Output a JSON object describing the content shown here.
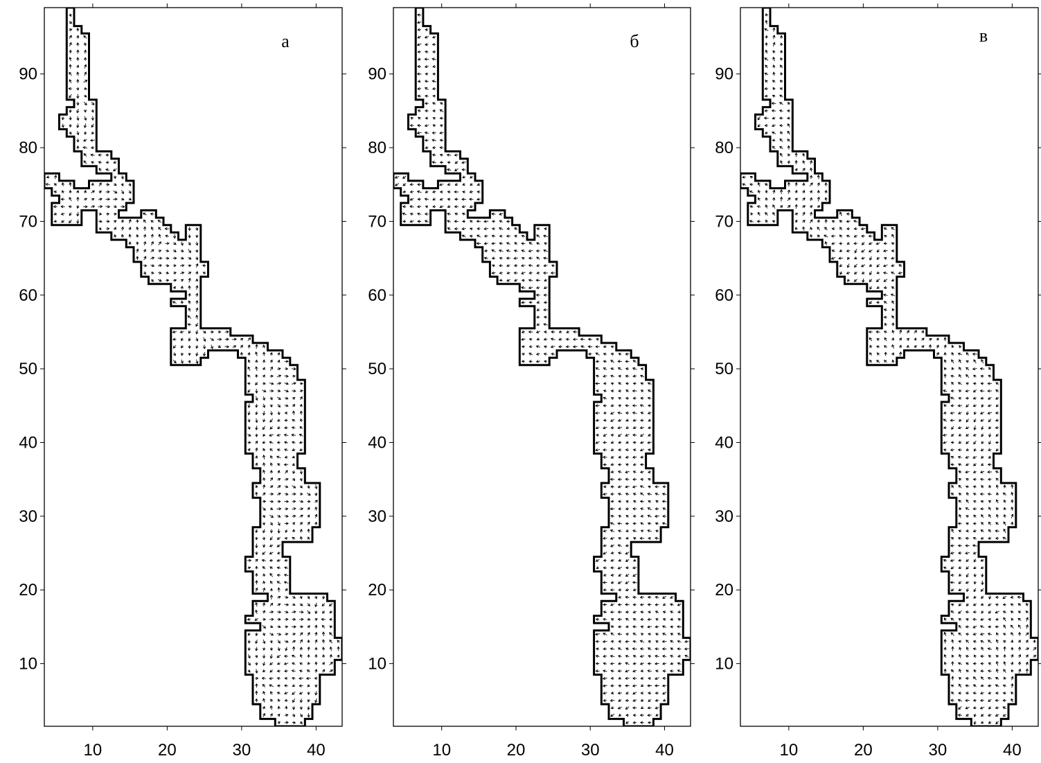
{
  "chart_data": [
    {
      "type": "quiver",
      "panel_label": "а",
      "xlim": [
        3.5,
        43.5
      ],
      "ylim": [
        1.5,
        99
      ],
      "xticks": [
        10,
        20,
        30,
        40
      ],
      "yticks": [
        10,
        20,
        30,
        40,
        50,
        60,
        70,
        80,
        90
      ],
      "xticklabels": [
        "10",
        "20",
        "30",
        "40"
      ],
      "yticklabels": [
        "10",
        "20",
        "30",
        "40",
        "50",
        "60",
        "70",
        "80",
        "90"
      ],
      "grid": false,
      "vector_field": "circulation"
    },
    {
      "type": "quiver",
      "panel_label": "б",
      "xlim": [
        3.5,
        43.5
      ],
      "ylim": [
        1.5,
        99
      ],
      "xticks": [
        10,
        20,
        30,
        40
      ],
      "yticks": [
        10,
        20,
        30,
        40,
        50,
        60,
        70,
        80,
        90
      ],
      "xticklabels": [
        "10",
        "20",
        "30",
        "40"
      ],
      "yticklabels": [
        "10",
        "20",
        "30",
        "40",
        "50",
        "60",
        "70",
        "80",
        "90"
      ],
      "grid": false,
      "vector_field": "westward"
    },
    {
      "type": "quiver",
      "panel_label": "в",
      "xlim": [
        3.5,
        43.5
      ],
      "ylim": [
        1.5,
        99
      ],
      "xticks": [
        10,
        20,
        30,
        40
      ],
      "yticks": [
        10,
        20,
        30,
        40,
        50,
        60,
        70,
        80,
        90
      ],
      "xticklabels": [
        "10",
        "20",
        "30",
        "40"
      ],
      "yticklabels": [
        "10",
        "20",
        "30",
        "40",
        "50",
        "60",
        "70",
        "80",
        "90"
      ],
      "grid": false,
      "vector_field": "mixed"
    }
  ],
  "domain_outline": [
    [
      7.5,
      99
    ],
    [
      7.5,
      96.5
    ],
    [
      8.5,
      96.5
    ],
    [
      8.5,
      95.5
    ],
    [
      9.5,
      95.5
    ],
    [
      9.5,
      86.5
    ],
    [
      10.5,
      86.5
    ],
    [
      10.5,
      79.5
    ],
    [
      12.5,
      79.5
    ],
    [
      12.5,
      78.5
    ],
    [
      13.5,
      78.5
    ],
    [
      13.5,
      76.5
    ],
    [
      14.5,
      76.5
    ],
    [
      14.5,
      75.5
    ],
    [
      15.5,
      75.5
    ],
    [
      15.5,
      72.5
    ],
    [
      14.5,
      72.5
    ],
    [
      14.5,
      71.5
    ],
    [
      13.5,
      71.5
    ],
    [
      13.5,
      70.5
    ],
    [
      16.5,
      70.5
    ],
    [
      16.5,
      71.5
    ],
    [
      18.5,
      71.5
    ],
    [
      18.5,
      70.5
    ],
    [
      19.5,
      70.5
    ],
    [
      19.5,
      69.5
    ],
    [
      20.5,
      69.5
    ],
    [
      20.5,
      68.5
    ],
    [
      21.5,
      68.5
    ],
    [
      21.5,
      67.5
    ],
    [
      22.5,
      67.5
    ],
    [
      22.5,
      69.5
    ],
    [
      24.5,
      69.5
    ],
    [
      24.5,
      64.5
    ],
    [
      25.5,
      64.5
    ],
    [
      25.5,
      62.5
    ],
    [
      24.5,
      62.5
    ],
    [
      24.5,
      55.5
    ],
    [
      28.5,
      55.5
    ],
    [
      28.5,
      54.5
    ],
    [
      31.5,
      54.5
    ],
    [
      31.5,
      53.5
    ],
    [
      33.5,
      53.5
    ],
    [
      33.5,
      52.5
    ],
    [
      35.5,
      52.5
    ],
    [
      35.5,
      51.5
    ],
    [
      36.5,
      51.5
    ],
    [
      36.5,
      50.5
    ],
    [
      37.5,
      50.5
    ],
    [
      37.5,
      48.5
    ],
    [
      38.5,
      48.5
    ],
    [
      38.5,
      38.5
    ],
    [
      37.5,
      38.5
    ],
    [
      37.5,
      36.5
    ],
    [
      38.5,
      36.5
    ],
    [
      38.5,
      34.5
    ],
    [
      40.5,
      34.5
    ],
    [
      40.5,
      28.5
    ],
    [
      39.5,
      28.5
    ],
    [
      39.5,
      26.5
    ],
    [
      35.5,
      26.5
    ],
    [
      35.5,
      24.5
    ],
    [
      36.5,
      24.5
    ],
    [
      36.5,
      19.5
    ],
    [
      41.5,
      19.5
    ],
    [
      41.5,
      18.5
    ],
    [
      42.5,
      18.5
    ],
    [
      42.5,
      13.5
    ],
    [
      43.5,
      13.5
    ],
    [
      43.5,
      10.5
    ],
    [
      42.5,
      10.5
    ],
    [
      42.5,
      8.5
    ],
    [
      40.5,
      8.5
    ],
    [
      40.5,
      4.5
    ],
    [
      39.5,
      4.5
    ],
    [
      39.5,
      2.5
    ],
    [
      38.5,
      2.5
    ],
    [
      38.5,
      1.5
    ],
    [
      34.5,
      1.5
    ],
    [
      34.5,
      2.5
    ],
    [
      32.5,
      2.5
    ],
    [
      32.5,
      4.5
    ],
    [
      31.5,
      4.5
    ],
    [
      31.5,
      8.5
    ],
    [
      30.5,
      8.5
    ],
    [
      30.5,
      14.5
    ],
    [
      32.5,
      14.5
    ],
    [
      32.5,
      15.5
    ],
    [
      30.5,
      15.5
    ],
    [
      30.5,
      16.5
    ],
    [
      31.5,
      16.5
    ],
    [
      31.5,
      18.5
    ],
    [
      33.5,
      18.5
    ],
    [
      33.5,
      19.5
    ],
    [
      31.5,
      19.5
    ],
    [
      31.5,
      22.5
    ],
    [
      30.5,
      22.5
    ],
    [
      30.5,
      24.5
    ],
    [
      31.5,
      24.5
    ],
    [
      31.5,
      28.5
    ],
    [
      32.5,
      28.5
    ],
    [
      32.5,
      32.5
    ],
    [
      31.5,
      32.5
    ],
    [
      31.5,
      34.5
    ],
    [
      32.5,
      34.5
    ],
    [
      32.5,
      36.5
    ],
    [
      31.5,
      36.5
    ],
    [
      31.5,
      38.5
    ],
    [
      30.5,
      38.5
    ],
    [
      30.5,
      45.5
    ],
    [
      31.5,
      45.5
    ],
    [
      31.5,
      46.5
    ],
    [
      30.5,
      46.5
    ],
    [
      30.5,
      51.5
    ],
    [
      29.5,
      51.5
    ],
    [
      29.5,
      52.5
    ],
    [
      25.5,
      52.5
    ],
    [
      25.5,
      51.5
    ],
    [
      24.5,
      51.5
    ],
    [
      24.5,
      50.5
    ],
    [
      20.5,
      50.5
    ],
    [
      20.5,
      55.5
    ],
    [
      22.5,
      55.5
    ],
    [
      22.5,
      58.5
    ],
    [
      20.5,
      58.5
    ],
    [
      20.5,
      59.5
    ],
    [
      22.5,
      59.5
    ],
    [
      22.5,
      60.5
    ],
    [
      20.5,
      60.5
    ],
    [
      20.5,
      61.5
    ],
    [
      17.5,
      61.5
    ],
    [
      17.5,
      62.5
    ],
    [
      16.5,
      62.5
    ],
    [
      16.5,
      64.5
    ],
    [
      15.5,
      64.5
    ],
    [
      15.5,
      66.5
    ],
    [
      14.5,
      66.5
    ],
    [
      14.5,
      67.5
    ],
    [
      12.5,
      67.5
    ],
    [
      12.5,
      68.5
    ],
    [
      10.5,
      68.5
    ],
    [
      10.5,
      71.5
    ],
    [
      8.5,
      71.5
    ],
    [
      8.5,
      69.5
    ],
    [
      4.5,
      69.5
    ],
    [
      4.5,
      72.5
    ],
    [
      5.5,
      72.5
    ],
    [
      5.5,
      73.5
    ],
    [
      4.5,
      73.5
    ],
    [
      4.5,
      74.5
    ],
    [
      3.5,
      74.5
    ],
    [
      3.5,
      76.5
    ],
    [
      5.5,
      76.5
    ],
    [
      5.5,
      75.5
    ],
    [
      7.5,
      75.5
    ],
    [
      7.5,
      74.5
    ],
    [
      9.5,
      74.5
    ],
    [
      9.5,
      75.5
    ],
    [
      12.5,
      75.5
    ],
    [
      12.5,
      76.5
    ],
    [
      10.5,
      76.5
    ],
    [
      10.5,
      77.5
    ],
    [
      8.5,
      77.5
    ],
    [
      8.5,
      79.5
    ],
    [
      7.5,
      79.5
    ],
    [
      7.5,
      81.5
    ],
    [
      6.5,
      81.5
    ],
    [
      6.5,
      82.5
    ],
    [
      5.5,
      82.5
    ],
    [
      5.5,
      84.5
    ],
    [
      6.5,
      84.5
    ],
    [
      6.5,
      85.5
    ],
    [
      7.5,
      85.5
    ],
    [
      7.5,
      86.5
    ],
    [
      6.5,
      86.5
    ],
    [
      6.5,
      99
    ],
    [
      7.5,
      99
    ]
  ]
}
